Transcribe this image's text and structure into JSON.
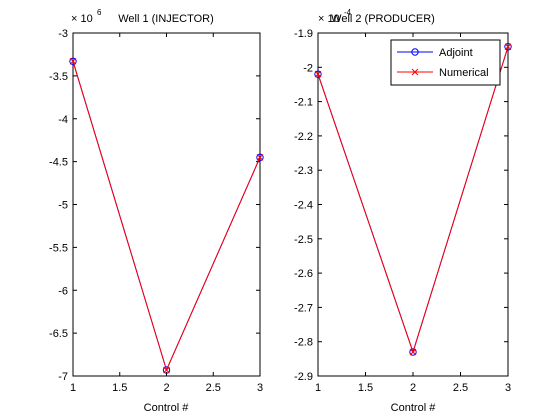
{
  "colors": {
    "axis": "#000000",
    "adjoint": "#0000ff",
    "numerical": "#ff0000",
    "background": "#ffffff"
  },
  "chart_data": [
    {
      "type": "line",
      "title": "Well 1 (INJECTOR)",
      "xlabel": "Control #",
      "ylabel": "",
      "y_exponent_label": "× 10",
      "y_exponent": "6",
      "xlim": [
        1,
        3
      ],
      "ylim": [
        -7,
        -3
      ],
      "x_ticks": [
        1,
        1.5,
        2,
        2.5,
        3
      ],
      "x_tick_labels": [
        "1",
        "1.5",
        "2",
        "2.5",
        "3"
      ],
      "y_ticks": [
        -3,
        -3.5,
        -4,
        -4.5,
        -5,
        -5.5,
        -6,
        -6.5,
        -7
      ],
      "y_tick_labels": [
        "-3",
        "-3.5",
        "-4",
        "-4.5",
        "-5",
        "-5.5",
        "-6",
        "-6.5",
        "-7"
      ],
      "grid": false,
      "x": [
        1,
        2,
        3
      ],
      "series": [
        {
          "name": "Adjoint",
          "marker": "circle",
          "color": "#0000ff",
          "values": [
            -3.33,
            -6.93,
            -4.45
          ]
        },
        {
          "name": "Numerical",
          "marker": "x",
          "color": "#ff0000",
          "values": [
            -3.33,
            -6.93,
            -4.45
          ]
        }
      ],
      "legend": null
    },
    {
      "type": "line",
      "title": "Well 2 (PRODUCER)",
      "xlabel": "Control #",
      "ylabel": "",
      "y_exponent_label": "× 10",
      "y_exponent": "-4",
      "xlim": [
        1,
        3
      ],
      "ylim": [
        -2.9,
        -1.9
      ],
      "x_ticks": [
        1,
        1.5,
        2,
        2.5,
        3
      ],
      "x_tick_labels": [
        "1",
        "1.5",
        "2",
        "2.5",
        "3"
      ],
      "y_ticks": [
        -1.9,
        -2,
        -2.1,
        -2.2,
        -2.3,
        -2.4,
        -2.5,
        -2.6,
        -2.7,
        -2.8,
        -2.9
      ],
      "y_tick_labels": [
        "-1.9",
        "-2",
        "-2.1",
        "-2.2",
        "-2.3",
        "-2.4",
        "-2.5",
        "-2.6",
        "-2.7",
        "-2.8",
        "-2.9"
      ],
      "grid": false,
      "x": [
        1,
        2,
        3
      ],
      "series": [
        {
          "name": "Adjoint",
          "marker": "circle",
          "color": "#0000ff",
          "values": [
            -2.02,
            -2.83,
            -1.94
          ]
        },
        {
          "name": "Numerical",
          "marker": "x",
          "color": "#ff0000",
          "values": [
            -2.02,
            -2.83,
            -1.94
          ]
        }
      ],
      "legend": {
        "placement": "top-right",
        "entries": [
          "Adjoint",
          "Numerical"
        ]
      }
    }
  ]
}
